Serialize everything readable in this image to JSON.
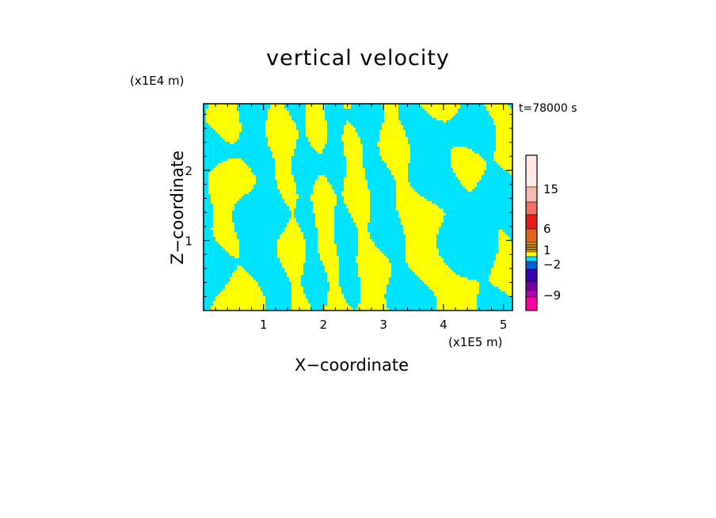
{
  "chart_data": {
    "type": "heatmap",
    "title": "vertical velocity",
    "xlabel": "X−coordinate",
    "ylabel": "Z−coordinate",
    "x_unit": "(x1E5 m)",
    "y_unit": "(x1E4 m)",
    "time_label": "t=78000 s",
    "xlim": [
      0,
      5.15
    ],
    "ylim": [
      0,
      2.95
    ],
    "x_ticks": [
      "1",
      "2",
      "3",
      "4",
      "5"
    ],
    "y_ticks": [
      "1",
      "2"
    ],
    "colorbar": {
      "labels": [
        "15",
        "6",
        "1",
        "−2",
        "−9"
      ],
      "colors": [
        "#fde9e6",
        "#f8b8b0",
        "#f0706a",
        "#e31a1c",
        "#e0641c",
        "#e8a020",
        "#ffff00",
        "#00e5ff",
        "#0060d0",
        "#3a00b0",
        "#7000a0",
        "#b000b0",
        "#ff00a0"
      ]
    },
    "field_colors": {
      "positive": "#ffff00",
      "negative": "#00e5ff"
    }
  }
}
